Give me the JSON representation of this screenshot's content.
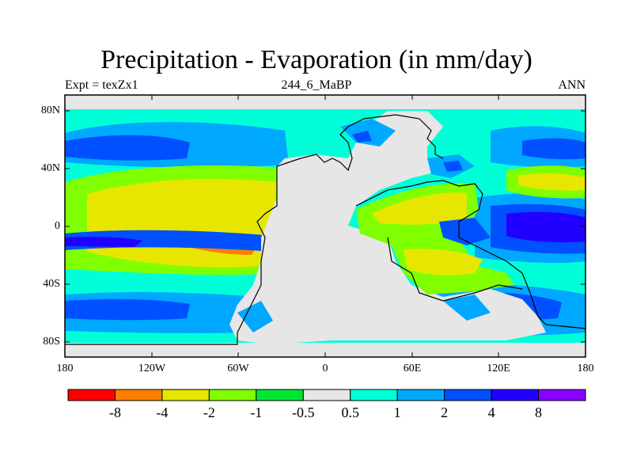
{
  "title": "Precipitation - Evaporation (in mm/day)",
  "left_label": "Expt = texZx1",
  "center_label": "244_6_MaBP",
  "right_label": "ANN",
  "map": {
    "lat_ticks": [
      "80N",
      "40N",
      "0",
      "40S",
      "80S"
    ],
    "lon_ticks": [
      "180",
      "120W",
      "60W",
      "0",
      "60E",
      "120E",
      "180"
    ]
  },
  "colorbar": {
    "labels": [
      "-8",
      "-4",
      "-2",
      "-1",
      "-0.5",
      "0.5",
      "1",
      "2",
      "4",
      "8"
    ],
    "colors": [
      "#ff0000",
      "#ff7f00",
      "#e6e600",
      "#80ff00",
      "#00e633",
      "#e6e6e6",
      "#00ffd9",
      "#00a8ff",
      "#0050ff",
      "#2200ff",
      "#8800ff"
    ]
  },
  "palette": {
    "land": "#e6e6e6",
    "cyan": "#00ffd9",
    "light_blue": "#00a8ff",
    "blue": "#0050ff",
    "deep_blue": "#2200ff",
    "yellow": "#e6e600",
    "lime": "#80ff00",
    "green": "#00e633",
    "orange": "#ff7f00"
  }
}
